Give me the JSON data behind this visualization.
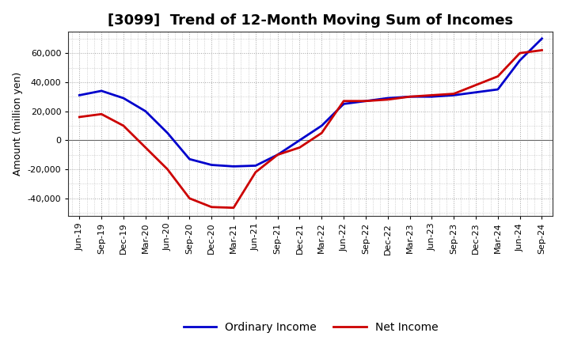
{
  "title": "[3099]  Trend of 12-Month Moving Sum of Incomes",
  "ylabel": "Amount (million yen)",
  "ylim": [
    -52000,
    75000
  ],
  "yticks": [
    -40000,
    -20000,
    0,
    20000,
    40000,
    60000
  ],
  "background_color": "#ffffff",
  "plot_bg_color": "#ffffff",
  "grid_color": "#999999",
  "ordinary_income_color": "#0000cc",
  "net_income_color": "#cc0000",
  "line_width": 2.0,
  "dates": [
    "Jun-19",
    "Sep-19",
    "Dec-19",
    "Mar-20",
    "Jun-20",
    "Sep-20",
    "Dec-20",
    "Mar-21",
    "Jun-21",
    "Sep-21",
    "Dec-21",
    "Mar-22",
    "Jun-22",
    "Sep-22",
    "Dec-22",
    "Mar-23",
    "Jun-23",
    "Sep-23",
    "Dec-23",
    "Mar-24",
    "Jun-24",
    "Sep-24"
  ],
  "ordinary_income": [
    31000,
    34000,
    29000,
    20000,
    5000,
    -13000,
    -17000,
    -18000,
    -17500,
    -10000,
    0,
    10000,
    25000,
    27000,
    29000,
    30000,
    30000,
    31000,
    33000,
    35000,
    55000,
    70000
  ],
  "net_income": [
    16000,
    18000,
    10000,
    -5000,
    -20000,
    -40000,
    -46000,
    -46500,
    -22000,
    -10000,
    -5000,
    5000,
    27000,
    27000,
    28000,
    30000,
    31000,
    32000,
    38000,
    44000,
    60000,
    62000
  ],
  "legend_labels": [
    "Ordinary Income",
    "Net Income"
  ],
  "title_fontsize": 13,
  "label_fontsize": 9,
  "tick_fontsize": 8
}
